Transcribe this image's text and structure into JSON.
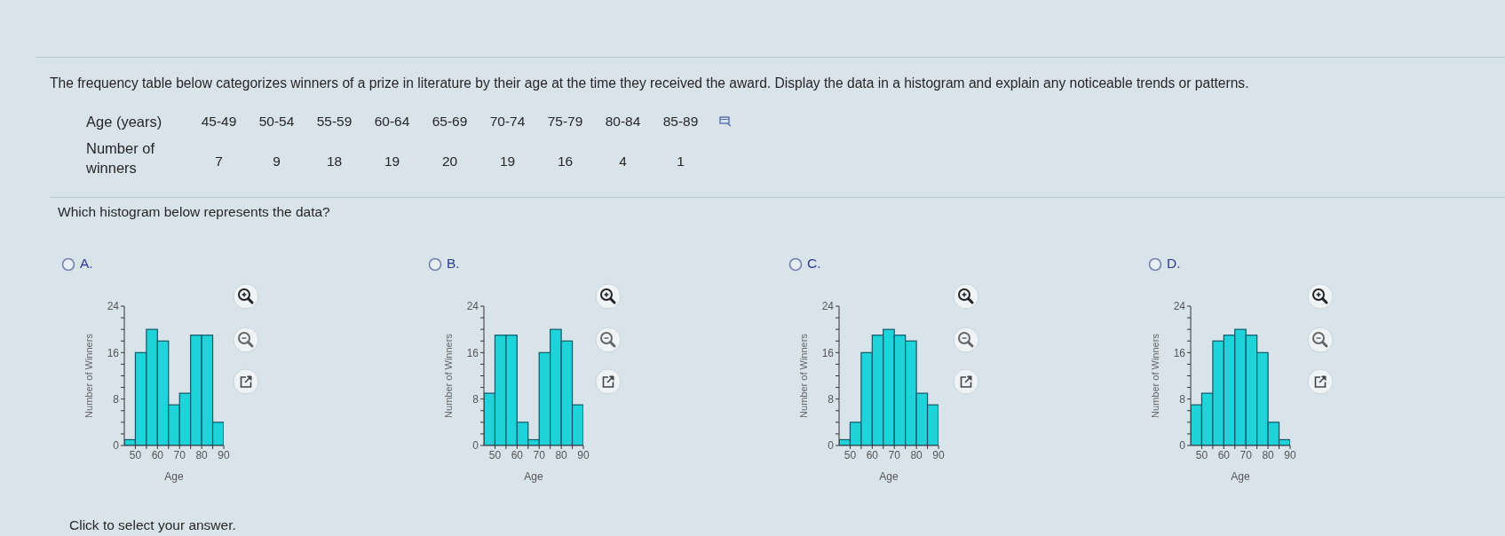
{
  "chart_data": [
    {
      "type": "other",
      "title": "The frequency table below categorizes winners of a prize in literature by their age at the time they received the award. Display the data in a histogram and explain any noticeable trends or patterns.",
      "xlabel": "Age (years)",
      "ylabel": "Number of winners",
      "categories": [
        "45-49",
        "50-54",
        "55-59",
        "60-64",
        "65-69",
        "70-74",
        "75-79",
        "80-84",
        "85-89"
      ],
      "values": [
        7,
        9,
        18,
        19,
        20,
        19,
        16,
        4,
        1
      ],
      "data_labels": true,
      "annotations": [
        "Which histogram below represents the data?",
        "Click to select your answer."
      ]
    },
    {
      "type": "histogram",
      "title": "A.",
      "xlabel": "Age",
      "ylabel": "Number of Winners",
      "bins": [
        45,
        50,
        55,
        60,
        65,
        70,
        75,
        80,
        85,
        90
      ],
      "values": [
        1,
        16,
        20,
        18,
        7,
        9,
        19,
        19,
        4
      ],
      "color": "#1ed3da",
      "xlim": [
        45,
        90
      ],
      "xticks": [
        50,
        {
          "value": 55,
          "label": null
        },
        60,
        {
          "value": 65,
          "label": null
        },
        70,
        {
          "value": 75,
          "label": null
        },
        80,
        {
          "value": 85,
          "label": null
        },
        90
      ],
      "ylim": [
        0,
        24
      ],
      "yticks": [
        0,
        {
          "value": 2,
          "label": null
        },
        {
          "value": 4,
          "label": null
        },
        {
          "value": 6,
          "label": null
        },
        8,
        {
          "value": 10,
          "label": null
        },
        {
          "value": 12,
          "label": null
        },
        {
          "value": 14,
          "label": null
        },
        16,
        {
          "value": 18,
          "label": null
        },
        {
          "value": 20,
          "label": null
        },
        {
          "value": 22,
          "label": null
        },
        24
      ]
    },
    {
      "type": "histogram",
      "title": "B.",
      "xlabel": "Age",
      "ylabel": "Number of Winners",
      "bins": [
        45,
        50,
        55,
        60,
        65,
        70,
        75,
        80,
        85,
        90
      ],
      "values": [
        9,
        19,
        19,
        4,
        1,
        16,
        20,
        18,
        7
      ],
      "color": "#1ed3da",
      "xlim": [
        45,
        90
      ],
      "xticks": [
        50,
        {
          "value": 55,
          "label": null
        },
        60,
        {
          "value": 65,
          "label": null
        },
        70,
        {
          "value": 75,
          "label": null
        },
        80,
        {
          "value": 85,
          "label": null
        },
        90
      ],
      "ylim": [
        0,
        24
      ],
      "yticks": [
        0,
        {
          "value": 2,
          "label": null
        },
        {
          "value": 4,
          "label": null
        },
        {
          "value": 6,
          "label": null
        },
        8,
        {
          "value": 10,
          "label": null
        },
        {
          "value": 12,
          "label": null
        },
        {
          "value": 14,
          "label": null
        },
        16,
        {
          "value": 18,
          "label": null
        },
        {
          "value": 20,
          "label": null
        },
        {
          "value": 22,
          "label": null
        },
        24
      ]
    },
    {
      "type": "histogram",
      "title": "C.",
      "xlabel": "Age",
      "ylabel": "Number of Winners",
      "bins": [
        45,
        50,
        55,
        60,
        65,
        70,
        75,
        80,
        85,
        90
      ],
      "values": [
        1,
        4,
        16,
        19,
        20,
        19,
        18,
        9,
        7
      ],
      "color": "#1ed3da",
      "xlim": [
        45,
        90
      ],
      "xticks": [
        50,
        {
          "value": 55,
          "label": null
        },
        60,
        {
          "value": 65,
          "label": null
        },
        70,
        {
          "value": 75,
          "label": null
        },
        80,
        {
          "value": 85,
          "label": null
        },
        90
      ],
      "ylim": [
        0,
        24
      ],
      "yticks": [
        0,
        {
          "value": 2,
          "label": null
        },
        {
          "value": 4,
          "label": null
        },
        {
          "value": 6,
          "label": null
        },
        8,
        {
          "value": 10,
          "label": null
        },
        {
          "value": 12,
          "label": null
        },
        {
          "value": 14,
          "label": null
        },
        16,
        {
          "value": 18,
          "label": null
        },
        {
          "value": 20,
          "label": null
        },
        {
          "value": 22,
          "label": null
        },
        24
      ]
    },
    {
      "type": "histogram",
      "title": "D.",
      "xlabel": "Age",
      "ylabel": "Number of Winners",
      "bins": [
        45,
        50,
        55,
        60,
        65,
        70,
        75,
        80,
        85,
        90
      ],
      "values": [
        7,
        9,
        18,
        19,
        20,
        19,
        16,
        4,
        1
      ],
      "color": "#1ed3da",
      "xlim": [
        45,
        90
      ],
      "xticks": [
        50,
        {
          "value": 55,
          "label": null
        },
        60,
        {
          "value": 65,
          "label": null
        },
        70,
        {
          "value": 75,
          "label": null
        },
        80,
        {
          "value": 85,
          "label": null
        },
        90
      ],
      "ylim": [
        0,
        24
      ],
      "yticks": [
        0,
        {
          "value": 2,
          "label": null
        },
        {
          "value": 4,
          "label": null
        },
        {
          "value": 6,
          "label": null
        },
        8,
        {
          "value": 10,
          "label": null
        },
        {
          "value": 12,
          "label": null
        },
        {
          "value": 14,
          "label": null
        },
        16,
        {
          "value": 18,
          "label": null
        },
        {
          "value": 20,
          "label": null
        },
        {
          "value": 22,
          "label": null
        },
        24
      ]
    }
  ]
}
